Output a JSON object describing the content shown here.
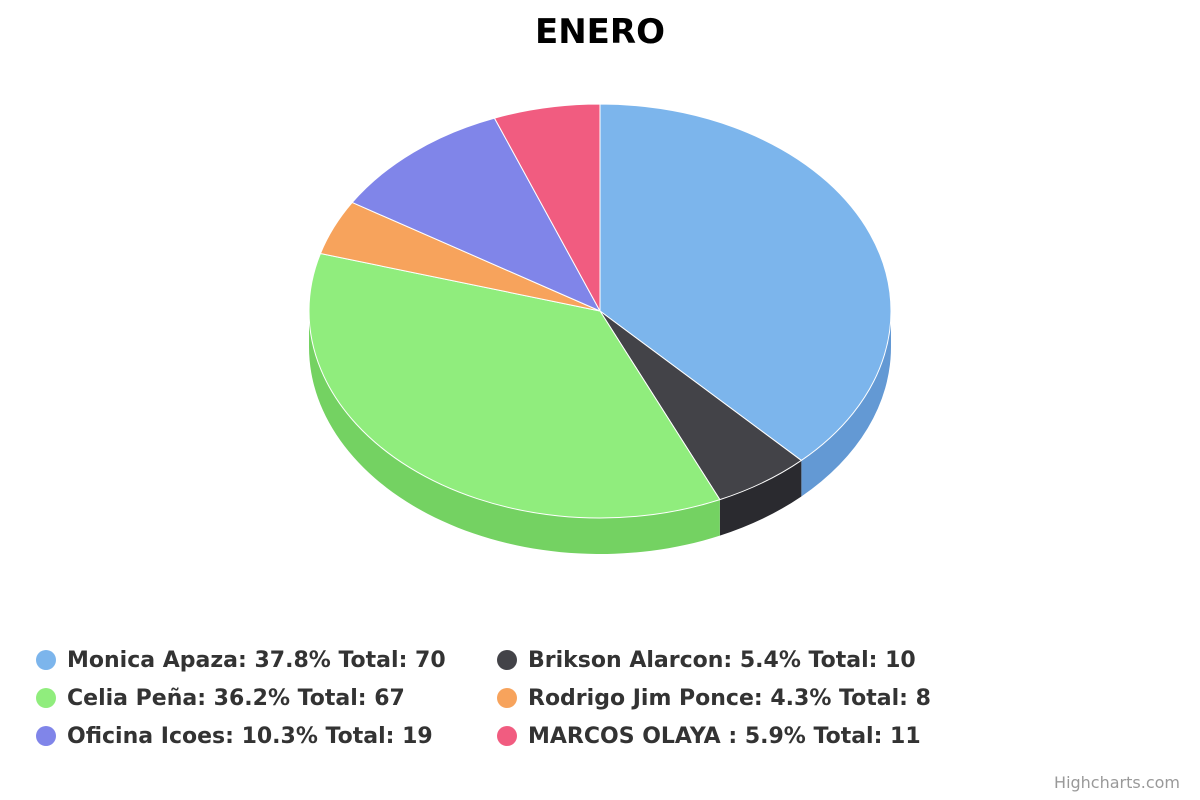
{
  "chart_data": {
    "type": "pie",
    "title": "ENERO",
    "series": [
      {
        "name": "Monica Apaza",
        "percent": 37.8,
        "total": 70,
        "color": "#7cb5ec",
        "side_color": "#6399d4",
        "label": "Monica Apaza: 37.8% Total: 70"
      },
      {
        "name": "Brikson Alarcon",
        "percent": 5.4,
        "total": 10,
        "color": "#434348",
        "side_color": "#2a2a2f",
        "label": "Brikson Alarcon: 5.4% Total: 10"
      },
      {
        "name": "Celia Peña",
        "percent": 36.2,
        "total": 67,
        "color": "#90ed7d",
        "side_color": "#74d262",
        "label": "Celia Peña: 36.2% Total: 67"
      },
      {
        "name": "Rodrigo Jim Ponce",
        "percent": 4.3,
        "total": 8,
        "color": "#f7a35c",
        "side_color": "#db8843",
        "label": "Rodrigo Jim Ponce: 4.3% Total: 8"
      },
      {
        "name": "Oficina Icoes",
        "percent": 10.3,
        "total": 19,
        "color": "#8085e9",
        "side_color": "#666bcf",
        "label": "Oficina Icoes: 10.3% Total: 19"
      },
      {
        "name": "MARCOS OLAYA ",
        "percent": 5.9,
        "total": 11,
        "color": "#f15c80",
        "side_color": "#d54266",
        "label": "MARCOS OLAYA : 5.9% Total: 11"
      }
    ],
    "legend_position": "bottom",
    "three_d": true
  },
  "credits": "Highcharts.com"
}
